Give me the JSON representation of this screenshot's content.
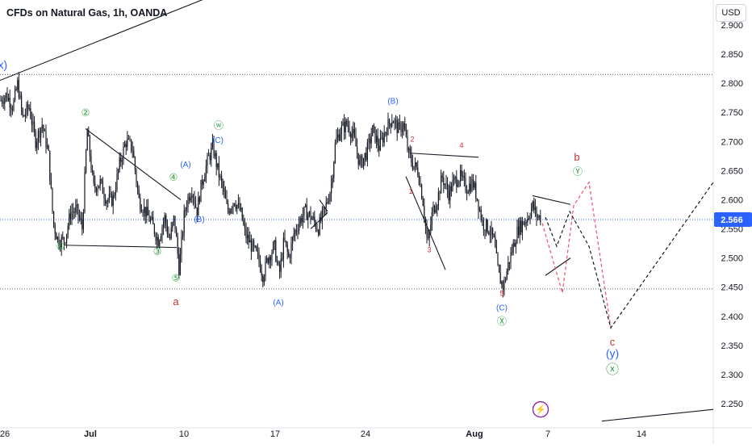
{
  "header": {
    "title": "CFDs on Natural Gas, 1h, OANDA",
    "currency": "USD"
  },
  "colors": {
    "green": "#2e9f3e",
    "blue": "#2962ff",
    "red": "#d32f2f",
    "purple": "#8e24aa",
    "candle": "#131722",
    "price_tag": "#2962ff",
    "axis_text": "#131722"
  },
  "chart_data": {
    "type": "candlestick",
    "title": "CFDs on Natural Gas, 1h, OANDA",
    "ylim": [
      2.22,
      2.91
    ],
    "y_ticks": [
      2.25,
      2.3,
      2.35,
      2.4,
      2.45,
      2.5,
      2.55,
      2.6,
      2.65,
      2.7,
      2.75,
      2.8,
      2.85,
      2.9
    ],
    "x_tick_labels": [
      "26",
      "Jul",
      "10",
      "17",
      "24",
      "Aug",
      "7",
      "14"
    ],
    "last_price": 2.566,
    "price_path": [
      [
        0,
        2.77
      ],
      [
        8,
        2.78
      ],
      [
        16,
        2.76
      ],
      [
        22,
        2.8
      ],
      [
        28,
        2.74
      ],
      [
        36,
        2.76
      ],
      [
        44,
        2.7
      ],
      [
        52,
        2.73
      ],
      [
        60,
        2.68
      ],
      [
        66,
        2.56
      ],
      [
        72,
        2.53
      ],
      [
        80,
        2.53
      ],
      [
        88,
        2.58
      ],
      [
        96,
        2.58
      ],
      [
        102,
        2.55
      ],
      [
        108,
        2.72
      ],
      [
        116,
        2.62
      ],
      [
        124,
        2.63
      ],
      [
        132,
        2.6
      ],
      [
        140,
        2.6
      ],
      [
        148,
        2.66
      ],
      [
        156,
        2.7
      ],
      [
        164,
        2.69
      ],
      [
        172,
        2.6
      ],
      [
        180,
        2.58
      ],
      [
        188,
        2.56
      ],
      [
        196,
        2.53
      ],
      [
        204,
        2.57
      ],
      [
        210,
        2.53
      ],
      [
        216,
        2.57
      ],
      [
        222,
        2.48
      ],
      [
        228,
        2.57
      ],
      [
        232,
        2.6
      ],
      [
        238,
        2.62
      ],
      [
        244,
        2.58
      ],
      [
        250,
        2.63
      ],
      [
        258,
        2.67
      ],
      [
        264,
        2.69
      ],
      [
        270,
        2.65
      ],
      [
        276,
        2.62
      ],
      [
        282,
        2.58
      ],
      [
        290,
        2.6
      ],
      [
        298,
        2.58
      ],
      [
        304,
        2.54
      ],
      [
        312,
        2.52
      ],
      [
        320,
        2.5
      ],
      [
        326,
        2.47
      ],
      [
        332,
        2.5
      ],
      [
        340,
        2.52
      ],
      [
        346,
        2.47
      ],
      [
        352,
        2.53
      ],
      [
        358,
        2.5
      ],
      [
        364,
        2.54
      ],
      [
        370,
        2.56
      ],
      [
        378,
        2.58
      ],
      [
        386,
        2.57
      ],
      [
        394,
        2.55
      ],
      [
        402,
        2.58
      ],
      [
        410,
        2.62
      ],
      [
        416,
        2.7
      ],
      [
        422,
        2.72
      ],
      [
        430,
        2.73
      ],
      [
        438,
        2.71
      ],
      [
        446,
        2.66
      ],
      [
        454,
        2.68
      ],
      [
        462,
        2.72
      ],
      [
        470,
        2.69
      ],
      [
        478,
        2.72
      ],
      [
        486,
        2.74
      ],
      [
        494,
        2.72
      ],
      [
        500,
        2.73
      ],
      [
        506,
        2.68
      ],
      [
        512,
        2.66
      ],
      [
        518,
        2.65
      ],
      [
        524,
        2.6
      ],
      [
        530,
        2.52
      ],
      [
        536,
        2.58
      ],
      [
        542,
        2.6
      ],
      [
        548,
        2.64
      ],
      [
        556,
        2.61
      ],
      [
        562,
        2.63
      ],
      [
        570,
        2.64
      ],
      [
        578,
        2.62
      ],
      [
        586,
        2.63
      ],
      [
        592,
        2.6
      ],
      [
        598,
        2.56
      ],
      [
        606,
        2.55
      ],
      [
        612,
        2.53
      ],
      [
        618,
        2.47
      ],
      [
        624,
        2.45
      ],
      [
        630,
        2.49
      ],
      [
        636,
        2.52
      ],
      [
        642,
        2.55
      ],
      [
        648,
        2.56
      ],
      [
        654,
        2.57
      ],
      [
        660,
        2.59
      ],
      [
        666,
        2.57
      ],
      [
        670,
        2.57
      ]
    ],
    "projections": [
      {
        "name": "red",
        "dashed": true,
        "points": [
          [
            672,
            2.56
          ],
          [
            697,
            2.44
          ],
          [
            711,
            2.59
          ],
          [
            730,
            2.63
          ],
          [
            757,
            2.38
          ]
        ]
      },
      {
        "name": "black",
        "dashed": true,
        "points": [
          [
            676,
            2.57
          ],
          [
            690,
            2.52
          ],
          [
            706,
            2.58
          ],
          [
            730,
            2.52
          ],
          [
            757,
            2.38
          ],
          [
            884,
            2.63
          ]
        ]
      }
    ]
  },
  "annotations": [
    {
      "text": "(x)",
      "date": 1,
      "price": 2.825,
      "color": "blue",
      "size": 14
    },
    {
      "text": "(y)",
      "date": 759,
      "price": 2.33,
      "color": "blue",
      "size": 14
    },
    {
      "text": "①",
      "date": 75,
      "price": 2.515,
      "color": "green",
      "size": 12
    },
    {
      "text": "②",
      "date": 106,
      "price": 2.744,
      "color": "green",
      "size": 12
    },
    {
      "text": "③",
      "date": 195,
      "price": 2.506,
      "color": "green",
      "size": 12
    },
    {
      "text": "④",
      "date": 215,
      "price": 2.633,
      "color": "green",
      "size": 12
    },
    {
      "text": "⑤",
      "date": 218,
      "price": 2.46,
      "color": "green",
      "size": 12
    },
    {
      "text": "ⓦ",
      "date": 271,
      "price": 2.722,
      "color": "green",
      "size": 12
    },
    {
      "text": "Ⓧ",
      "date": 622,
      "price": 2.386,
      "color": "green",
      "size": 12
    },
    {
      "text": "Ⓨ",
      "date": 716,
      "price": 2.643,
      "color": "green",
      "size": 12
    },
    {
      "text": "ⓧ",
      "date": 759,
      "price": 2.301,
      "color": "green",
      "size": 16
    },
    {
      "text": "(A)",
      "date": 230,
      "price": 2.656,
      "color": "blue",
      "size": 10
    },
    {
      "text": "(C)",
      "date": 270,
      "price": 2.698,
      "color": "blue",
      "size": 10
    },
    {
      "text": "(B)",
      "date": 247,
      "price": 2.562,
      "color": "blue",
      "size": 10
    },
    {
      "text": "(A)",
      "date": 345,
      "price": 2.419,
      "color": "blue",
      "size": 10
    },
    {
      "text": "(B)",
      "date": 487,
      "price": 2.765,
      "color": "blue",
      "size": 10
    },
    {
      "text": "(C)",
      "date": 622,
      "price": 2.41,
      "color": "blue",
      "size": 10
    },
    {
      "text": "a",
      "date": 218,
      "price": 2.419,
      "color": "red",
      "size": 13
    },
    {
      "text": "b",
      "date": 715,
      "price": 2.667,
      "color": "red",
      "size": 13
    },
    {
      "text": "c",
      "date": 759,
      "price": 2.35,
      "color": "red",
      "size": 13
    },
    {
      "text": "1",
      "date": 509,
      "price": 2.61,
      "color": "red",
      "size": 9
    },
    {
      "text": "2",
      "date": 511,
      "price": 2.7,
      "color": "red",
      "size": 9
    },
    {
      "text": "3",
      "date": 532,
      "price": 2.51,
      "color": "red",
      "size": 9
    },
    {
      "text": "4",
      "date": 572,
      "price": 2.689,
      "color": "red",
      "size": 9
    },
    {
      "text": "5",
      "date": 622,
      "price": 2.435,
      "color": "red",
      "size": 9
    }
  ],
  "trend_lines": [
    [
      0,
      2.805,
      299,
      2.97
    ],
    [
      79,
      2.522,
      219,
      2.518
    ],
    [
      106,
      2.722,
      224,
      2.6
    ],
    [
      385,
      2.55,
      406,
      2.578
    ],
    [
      396,
      2.6,
      406,
      2.58
    ],
    [
      509,
      2.68,
      593,
      2.673
    ],
    [
      503,
      2.64,
      552,
      2.48
    ],
    [
      660,
      2.607,
      707,
      2.592
    ],
    [
      676,
      2.47,
      707,
      2.5
    ],
    [
      746,
      2.22,
      884,
      2.24
    ]
  ],
  "dotted_lines": [
    2.815,
    2.447
  ],
  "event_icon": {
    "symbol": "⚡",
    "date": 670,
    "price": 2.24
  }
}
